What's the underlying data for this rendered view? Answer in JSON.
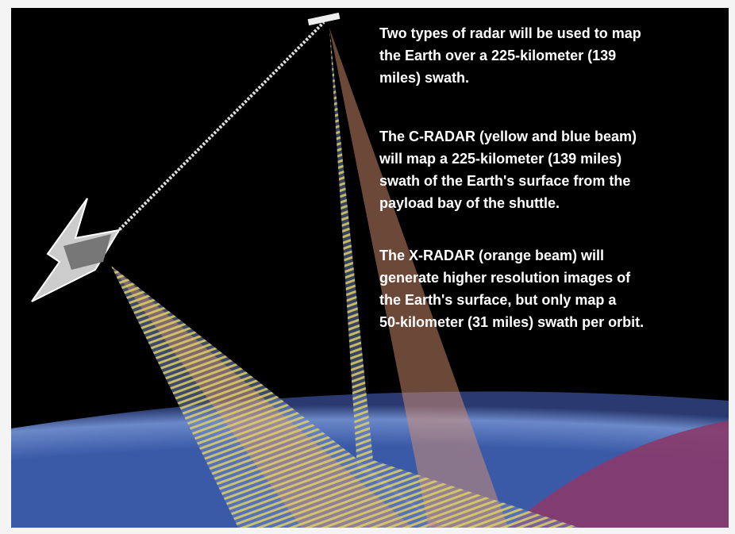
{
  "paragraphs": [
    {
      "lines": [
        "Two types of radar will be used to map",
        "the Earth over a 225-kilometer (139",
        "miles) swath."
      ]
    },
    {
      "lines": [
        "The C-RADAR (yellow and blue beam)",
        "will map a 225-kilometer (139 miles)",
        "swath of the Earth's surface from the",
        "payload bay of the shuttle."
      ]
    },
    {
      "lines": [
        "The X-RADAR (orange beam) will",
        "generate higher resolution images of",
        "the Earth's surface, but only map a",
        "50-kilometer (31 miles) swath per orbit."
      ]
    }
  ]
}
